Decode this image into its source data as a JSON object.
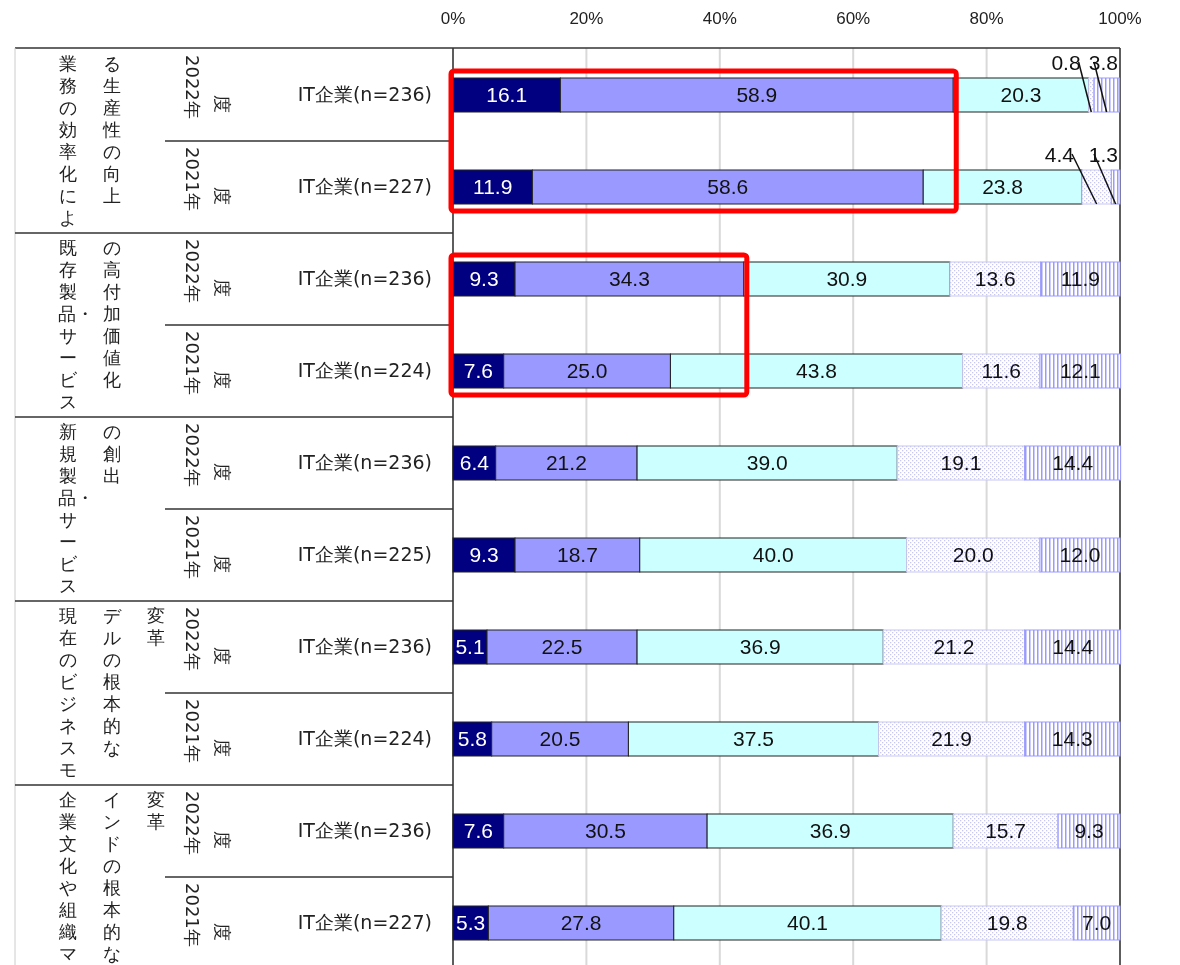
{
  "chart_data": {
    "type": "bar",
    "orientation": "horizontal",
    "stacked": true,
    "grid": "x",
    "data_labels": true,
    "categories": [
      "IT企業(n=236)",
      "IT企業(n=227)",
      "IT企業(n=236)",
      "IT企業(n=224)",
      "IT企業(n=236)",
      "IT企業(n=225)",
      "IT企業(n=236)",
      "IT企業(n=224)",
      "IT企業(n=236)",
      "IT企業(n=227)"
    ],
    "annotations": [
      "業務の効率化による生産性の向上",
      "既存製品・サービスの高付加価値化",
      "新規製品・サービスの創出",
      "現在のビジネスモデルの根本的な変革",
      "企業文化や組織マインドの根本的な変革",
      "2022年度",
      "2021年度",
      "2022年度",
      "2021年度",
      "2022年度",
      "2021年度",
      "2022年度",
      "2021年度",
      "2022年度",
      "2021年度"
    ],
    "xlim": [
      0,
      100
    ],
    "xticks": [
      {
        "value": 0,
        "label": "0%"
      },
      {
        "value": 20,
        "label": "20%"
      },
      {
        "value": 40,
        "label": "40%"
      },
      {
        "value": 60,
        "label": "60%"
      },
      {
        "value": 80,
        "label": "80%"
      },
      {
        "value": 100,
        "label": "100%"
      }
    ],
    "series": [
      {
        "color": "#000080",
        "values": [
          16.1,
          11.9,
          9.3,
          7.6,
          6.4,
          9.3,
          5.1,
          5.8,
          7.6,
          5.3
        ],
        "value_labels": [
          "16.1",
          "11.9",
          "9.3",
          "7.6",
          "6.4",
          "9.3",
          "5.1",
          "5.8",
          "7.6",
          "5.3"
        ]
      },
      {
        "color": "#9999ff",
        "values": [
          58.9,
          58.6,
          34.3,
          25.0,
          21.2,
          18.7,
          22.5,
          20.5,
          30.5,
          27.8
        ],
        "value_labels": [
          "58.9",
          "58.6",
          "34.3",
          "25.0",
          "21.2",
          "18.7",
          "22.5",
          "20.5",
          "30.5",
          "27.8"
        ]
      },
      {
        "color": "#ccffff",
        "values": [
          20.3,
          23.8,
          30.9,
          43.8,
          39.0,
          40.0,
          36.9,
          37.5,
          36.9,
          40.1
        ],
        "value_labels": [
          "20.3",
          "23.8",
          "30.9",
          "43.8",
          "39.0",
          "40.0",
          "36.9",
          "37.5",
          "36.9",
          "40.1"
        ]
      },
      {
        "color": "#c8c8f0",
        "values": [
          0.8,
          4.4,
          13.6,
          11.6,
          19.1,
          20.0,
          21.2,
          21.9,
          15.7,
          19.8
        ],
        "value_labels": [
          "0.8",
          "4.4",
          "13.6",
          "11.6",
          "19.1",
          "20.0",
          "21.2",
          "21.9",
          "15.7",
          "19.8"
        ]
      },
      {
        "color": "#9999ff",
        "values": [
          3.8,
          1.3,
          11.9,
          12.1,
          14.4,
          12.0,
          14.4,
          14.3,
          9.3,
          7.0
        ],
        "value_labels": [
          "3.8",
          "1.3",
          "11.9",
          "12.1",
          "14.4",
          "12.0",
          "14.4",
          "14.3",
          "9.3",
          "7.0"
        ]
      }
    ]
  }
}
